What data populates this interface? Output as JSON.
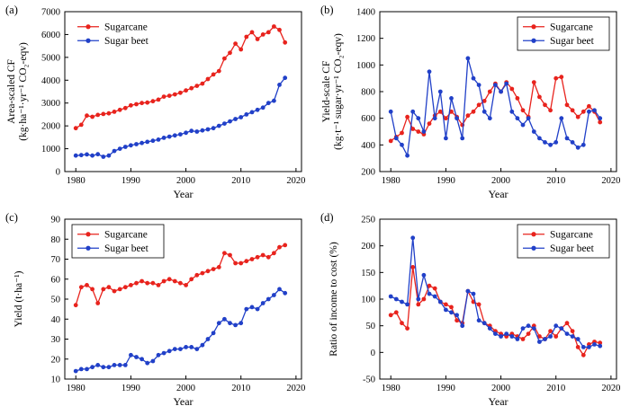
{
  "figure": {
    "background": "#ffffff",
    "series_colors": {
      "sugarcane": "#e8231d",
      "sugar_beet": "#2140c8"
    },
    "legend_labels": [
      "Sugarcane",
      "Sugar beet"
    ]
  },
  "chart_data": [
    {
      "type": "line",
      "panel_label": "(a)",
      "xlabel": "Year",
      "ylabel_lines": [
        "Area-scaled CF",
        "(kg·ha⁻¹·yr⁻¹ CO₂-eqv)"
      ],
      "xlim": [
        1978,
        2021
      ],
      "ylim": [
        0,
        7000
      ],
      "xticks": [
        1980,
        1990,
        2000,
        2010,
        2020
      ],
      "yticks": [
        0,
        1000,
        2000,
        3000,
        4000,
        5000,
        6000,
        7000
      ],
      "legend": {
        "position": "top-left",
        "box": false
      },
      "x": [
        1980,
        1981,
        1982,
        1983,
        1984,
        1985,
        1986,
        1987,
        1988,
        1989,
        1990,
        1991,
        1992,
        1993,
        1994,
        1995,
        1996,
        1997,
        1998,
        1999,
        2000,
        2001,
        2002,
        2003,
        2004,
        2005,
        2006,
        2007,
        2008,
        2009,
        2010,
        2011,
        2012,
        2013,
        2014,
        2015,
        2016,
        2017,
        2018
      ],
      "series": [
        {
          "name": "Sugarcane",
          "color": "#e8231d",
          "values": [
            1900,
            2050,
            2450,
            2400,
            2480,
            2520,
            2550,
            2620,
            2700,
            2780,
            2900,
            2950,
            3000,
            3020,
            3080,
            3150,
            3280,
            3320,
            3380,
            3450,
            3550,
            3650,
            3750,
            3850,
            4050,
            4250,
            4400,
            4950,
            5200,
            5600,
            5350,
            5900,
            6100,
            5800,
            6000,
            6100,
            6350,
            6200,
            5650
          ]
        },
        {
          "name": "Sugar beet",
          "color": "#2140c8",
          "values": [
            700,
            720,
            750,
            700,
            760,
            650,
            700,
            900,
            1000,
            1080,
            1150,
            1200,
            1250,
            1300,
            1350,
            1400,
            1480,
            1530,
            1580,
            1630,
            1700,
            1780,
            1750,
            1800,
            1850,
            1900,
            2000,
            2100,
            2200,
            2300,
            2380,
            2500,
            2600,
            2700,
            2800,
            3000,
            3100,
            3800,
            4100
          ]
        }
      ]
    },
    {
      "type": "line",
      "panel_label": "(b)",
      "xlabel": "Year",
      "ylabel_lines": [
        "Yield-scale CF",
        "(kg·t⁻¹ sugar·yr⁻¹ CO₂-eqv)"
      ],
      "xlim": [
        1978,
        2021
      ],
      "ylim": [
        200,
        1400
      ],
      "xticks": [
        1980,
        1990,
        2000,
        2010,
        2020
      ],
      "yticks": [
        200,
        400,
        600,
        800,
        1000,
        1200,
        1400
      ],
      "legend": {
        "position": "top-right",
        "box": true
      },
      "x": [
        1980,
        1981,
        1982,
        1983,
        1984,
        1985,
        1986,
        1987,
        1988,
        1989,
        1990,
        1991,
        1992,
        1993,
        1994,
        1995,
        1996,
        1997,
        1998,
        1999,
        2000,
        2001,
        2002,
        2003,
        2004,
        2005,
        2006,
        2007,
        2008,
        2009,
        2010,
        2011,
        2012,
        2013,
        2014,
        2015,
        2016,
        2017,
        2018
      ],
      "series": [
        {
          "name": "Sugarcane",
          "color": "#e8231d",
          "values": [
            430,
            460,
            490,
            610,
            520,
            500,
            480,
            560,
            620,
            650,
            600,
            650,
            610,
            550,
            620,
            650,
            700,
            730,
            800,
            860,
            800,
            870,
            820,
            750,
            660,
            610,
            870,
            760,
            700,
            660,
            900,
            910,
            700,
            660,
            610,
            650,
            690,
            650,
            570
          ]
        },
        {
          "name": "Sugar beet",
          "color": "#2140c8",
          "values": [
            650,
            450,
            400,
            320,
            650,
            600,
            500,
            950,
            600,
            800,
            450,
            750,
            600,
            450,
            1050,
            900,
            850,
            650,
            600,
            850,
            800,
            860,
            650,
            600,
            550,
            600,
            500,
            450,
            420,
            400,
            420,
            600,
            450,
            420,
            380,
            400,
            650,
            660,
            600
          ]
        }
      ]
    },
    {
      "type": "line",
      "panel_label": "(c)",
      "xlabel": "Year",
      "ylabel_lines": [
        "Yield (t·ha⁻¹)"
      ],
      "xlim": [
        1978,
        2021
      ],
      "ylim": [
        10,
        90
      ],
      "xticks": [
        1980,
        1990,
        2000,
        2010,
        2020
      ],
      "yticks": [
        10,
        20,
        30,
        40,
        50,
        60,
        70,
        80,
        90
      ],
      "legend": {
        "position": "top-left",
        "box": true
      },
      "x": [
        1980,
        1981,
        1982,
        1983,
        1984,
        1985,
        1986,
        1987,
        1988,
        1989,
        1990,
        1991,
        1992,
        1993,
        1994,
        1995,
        1996,
        1997,
        1998,
        1999,
        2000,
        2001,
        2002,
        2003,
        2004,
        2005,
        2006,
        2007,
        2008,
        2009,
        2010,
        2011,
        2012,
        2013,
        2014,
        2015,
        2016,
        2017,
        2018
      ],
      "series": [
        {
          "name": "Sugarcane",
          "color": "#e8231d",
          "values": [
            47,
            56,
            57,
            55,
            48,
            55,
            56,
            54,
            55,
            56,
            57,
            58,
            59,
            58,
            58,
            57,
            59,
            60,
            59,
            58,
            57,
            60,
            62,
            63,
            64,
            65,
            66,
            73,
            72,
            68,
            68,
            69,
            70,
            71,
            72,
            71,
            73,
            76,
            77
          ]
        },
        {
          "name": "Sugar beet",
          "color": "#2140c8",
          "values": [
            14,
            15,
            15,
            16,
            17,
            16,
            16,
            17,
            17,
            17,
            22,
            21,
            20,
            18,
            19,
            22,
            23,
            24,
            25,
            25,
            26,
            26,
            25,
            27,
            30,
            33,
            38,
            40,
            38,
            37,
            38,
            45,
            46,
            45,
            48,
            50,
            52,
            55,
            53
          ]
        }
      ]
    },
    {
      "type": "line",
      "panel_label": "(d)",
      "xlabel": "Year",
      "ylabel_lines": [
        "Ratio of income to cost (%)"
      ],
      "xlim": [
        1978,
        2021
      ],
      "ylim": [
        -50,
        250
      ],
      "xticks": [
        1980,
        1990,
        2000,
        2010,
        2020
      ],
      "yticks": [
        -50,
        0,
        50,
        100,
        150,
        200,
        250
      ],
      "legend": {
        "position": "top-right",
        "box": true
      },
      "x": [
        1980,
        1981,
        1982,
        1983,
        1984,
        1985,
        1986,
        1987,
        1988,
        1989,
        1990,
        1991,
        1992,
        1993,
        1994,
        1995,
        1996,
        1997,
        1998,
        1999,
        2000,
        2001,
        2002,
        2003,
        2004,
        2005,
        2006,
        2007,
        2008,
        2009,
        2010,
        2011,
        2012,
        2013,
        2014,
        2015,
        2016,
        2017,
        2018
      ],
      "series": [
        {
          "name": "Sugarcane",
          "color": "#e8231d",
          "values": [
            70,
            75,
            55,
            45,
            160,
            90,
            100,
            125,
            120,
            95,
            90,
            85,
            60,
            55,
            115,
            95,
            90,
            55,
            50,
            40,
            35,
            30,
            35,
            30,
            25,
            35,
            50,
            30,
            25,
            40,
            30,
            45,
            55,
            40,
            10,
            -5,
            15,
            20,
            18
          ]
        },
        {
          "name": "Sugar beet",
          "color": "#2140c8",
          "values": [
            105,
            100,
            95,
            90,
            215,
            100,
            145,
            110,
            105,
            95,
            80,
            75,
            70,
            50,
            115,
            110,
            60,
            55,
            45,
            35,
            30,
            35,
            30,
            25,
            45,
            50,
            45,
            20,
            25,
            30,
            50,
            45,
            35,
            30,
            25,
            10,
            10,
            15,
            12
          ]
        }
      ]
    }
  ]
}
